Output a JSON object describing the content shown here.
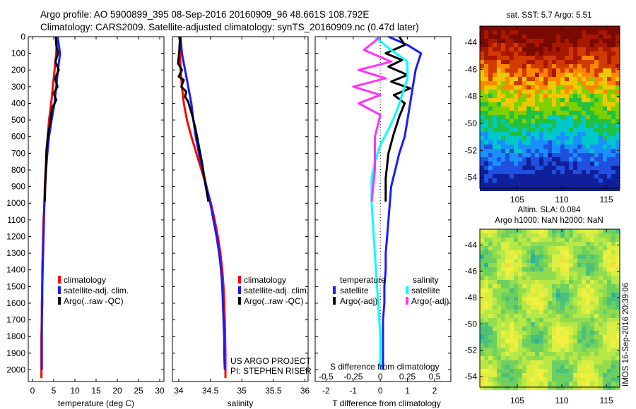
{
  "header": {
    "line1": "Argo profile: AO 5900899_395 08-Sep-2016 20160909_96 48.661S 108.792E",
    "line2": "Climatology: CARS2009. Satellite-adjusted climatology: synTS_20160909.nc (0.47d later)"
  },
  "depth_ticks": [
    "0",
    "100",
    "200",
    "300",
    "400",
    "500",
    "600",
    "700",
    "800",
    "900",
    "1000",
    "1100",
    "1200",
    "1300",
    "1400",
    "1500",
    "1600",
    "1700",
    "1800",
    "1900",
    "2000"
  ],
  "temperature_panel": {
    "xlabel": "temperature (deg C)",
    "xticks": [
      "0",
      "5",
      "10",
      "15",
      "20",
      "25",
      "30"
    ],
    "legend": [
      "climatology",
      "satellite-adj. clim.",
      "Argo(..raw -QC)"
    ]
  },
  "salinity_panel": {
    "xlabel": "salinity",
    "xticks": [
      "34",
      "34.5",
      "35",
      "35.5",
      "36"
    ],
    "legend": [
      "climatology",
      "satellite-adj. clim.",
      "Argo(..raw -QC)"
    ],
    "credit1": "US ARGO PROJECT",
    "credit2": "PI: STEPHEN RISER"
  },
  "difference_panel": {
    "xlabel": "T difference from climatology",
    "xlabel_s": "S difference from climatology",
    "xticks_t": [
      "-2",
      "-1",
      "0",
      "1",
      "2"
    ],
    "xticks_s": [
      "-0.5",
      "-0.25",
      "0",
      "0.25",
      "0.5"
    ],
    "legend_t_title": "temperature",
    "legend_s_title": "salinity",
    "legend_t": [
      "satellite",
      "Argo(-adj)"
    ],
    "legend_s": [
      "satellite",
      "Argo(-adj)"
    ]
  },
  "sst_map": {
    "title": "sat. SST: 5.7 Argo: 5.51",
    "yticks": [
      "-44",
      "-46",
      "-48",
      "-50",
      "-52",
      "-54"
    ],
    "xticks": [
      "105",
      "110",
      "115"
    ]
  },
  "sla_map": {
    "title1": "Altim. SLA: 0.084",
    "title2": "Argo h1000: NaN h2000: NaN",
    "yticks": [
      "-44",
      "-46",
      "-48",
      "-50",
      "-52",
      "-54"
    ],
    "xticks": [
      "105",
      "110",
      "115"
    ]
  },
  "stamp": "IMOS 16-Sep-2016 20:39:06",
  "colors": {
    "climatology": "#ff0000",
    "satellite": "#1a1aff",
    "argo": "#000000",
    "salinity_satellite": "#00ffff",
    "salinity_argo": "#ff33ff"
  },
  "chart_data": [
    {
      "type": "line",
      "name": "temperature profile",
      "xlabel": "temperature (deg C)",
      "ylabel": "depth",
      "xlim": [
        -1,
        31
      ],
      "ylim": [
        2070,
        0
      ],
      "series": [
        {
          "name": "climatology",
          "x": [
            5.8,
            5.6,
            5.2,
            4.8,
            4.4,
            3.9,
            3.6,
            3.3,
            3.1,
            2.9,
            2.8,
            2.6,
            2.5,
            2.4,
            2.3,
            2.3,
            2.2,
            2.2,
            2.1,
            2.1,
            2.1
          ],
          "y": [
            0,
            100,
            200,
            300,
            400,
            500,
            600,
            700,
            800,
            900,
            1000,
            1100,
            1200,
            1300,
            1400,
            1500,
            1600,
            1700,
            1800,
            1900,
            2050
          ]
        },
        {
          "name": "satellite-adj. clim.",
          "x": [
            5.9,
            6.5,
            6.0,
            5.6,
            5.2,
            4.5,
            3.9,
            3.5,
            3.2,
            3.0,
            2.8,
            2.7,
            2.6,
            2.5,
            2.4,
            2.3,
            2.3,
            2.2,
            2.2,
            2.2,
            2.2
          ],
          "y": [
            0,
            100,
            200,
            300,
            400,
            500,
            600,
            700,
            800,
            900,
            1000,
            1100,
            1200,
            1300,
            1400,
            1500,
            1600,
            1700,
            1800,
            1900,
            2000
          ]
        },
        {
          "name": "Argo(..raw -QC)",
          "x": [
            5.5,
            5.6,
            6.0,
            5.4,
            6.2,
            5.3,
            5.9,
            5.0,
            5.6,
            4.6,
            4.4,
            4.1,
            3.7,
            3.5,
            3.3,
            3.2,
            3.0,
            2.9
          ],
          "y": [
            0,
            50,
            100,
            150,
            200,
            250,
            300,
            340,
            380,
            430,
            480,
            530,
            580,
            630,
            680,
            760,
            880,
            990
          ]
        }
      ]
    },
    {
      "type": "line",
      "name": "salinity profile",
      "xlabel": "salinity",
      "ylabel": "depth",
      "xlim": [
        33.9,
        36.05
      ],
      "ylim": [
        2070,
        0
      ],
      "series": [
        {
          "name": "climatology",
          "x": [
            34.02,
            34.02,
            34.03,
            34.05,
            34.08,
            34.13,
            34.2,
            34.28,
            34.36,
            34.44,
            34.51,
            34.57,
            34.62,
            34.66,
            34.69,
            34.71,
            34.72,
            34.73,
            34.735,
            34.74,
            34.74
          ],
          "y": [
            0,
            100,
            200,
            300,
            400,
            500,
            600,
            700,
            800,
            900,
            1000,
            1100,
            1200,
            1300,
            1400,
            1500,
            1600,
            1700,
            1800,
            1900,
            2050
          ]
        },
        {
          "name": "satellite-adj. clim.",
          "x": [
            34.03,
            34.05,
            34.1,
            34.15,
            34.2,
            34.23,
            34.27,
            34.32,
            34.38,
            34.44,
            34.5,
            34.55,
            34.6,
            34.64,
            34.67,
            34.69,
            34.7,
            34.71,
            34.72,
            34.72,
            34.73
          ],
          "y": [
            0,
            100,
            200,
            300,
            400,
            500,
            600,
            700,
            800,
            900,
            1000,
            1100,
            1200,
            1300,
            1400,
            1500,
            1600,
            1700,
            1800,
            1900,
            2000
          ]
        },
        {
          "name": "Argo(..raw -QC)",
          "x": [
            34.02,
            34.01,
            33.99,
            34.05,
            34.0,
            34.08,
            34.04,
            34.12,
            34.1,
            34.15,
            34.18,
            34.22,
            34.27,
            34.32,
            34.37,
            34.42,
            34.47
          ],
          "y": [
            0,
            80,
            160,
            200,
            240,
            260,
            300,
            330,
            360,
            390,
            430,
            480,
            560,
            660,
            760,
            880,
            990
          ]
        }
      ]
    },
    {
      "type": "line",
      "name": "difference profile",
      "xlabel": "T difference from climatology",
      "x2label": "S difference from climatology",
      "ylabel": "depth",
      "xlim": [
        -2.4,
        2.6
      ],
      "ylim": [
        2070,
        0
      ],
      "series": [
        {
          "name": "temperature satellite",
          "x": [
            0.3,
            1.0,
            1.5,
            1.3,
            1.2,
            1.1,
            1.0,
            0.9,
            0.7,
            0.55,
            0.4,
            0.35,
            0.3,
            0.25,
            0.2,
            0.2,
            0.15,
            0.15,
            0.1,
            0.1,
            0.1
          ],
          "y": [
            0,
            50,
            100,
            200,
            300,
            400,
            500,
            600,
            700,
            800,
            900,
            1000,
            1100,
            1200,
            1300,
            1400,
            1500,
            1600,
            1700,
            1800,
            2000
          ]
        },
        {
          "name": "temperature Argo(-adj)",
          "x": [
            0.7,
            0.9,
            0.2,
            0.8,
            0.3,
            1.0,
            0.4,
            1.1,
            0.5,
            0.9,
            0.7,
            0.5,
            0.3,
            0.2,
            0.2
          ],
          "y": [
            0,
            50,
            100,
            140,
            180,
            230,
            270,
            310,
            350,
            400,
            480,
            580,
            700,
            850,
            990
          ]
        },
        {
          "name": "salinity satellite",
          "x": [
            -0.05,
            0.1,
            0.25,
            0.25,
            0.2,
            0.15,
            0.08,
            0.0,
            -0.05,
            -0.08,
            -0.08,
            -0.06,
            -0.04,
            -0.02,
            0.0,
            0.0
          ],
          "y": [
            0,
            80,
            150,
            250,
            350,
            450,
            550,
            650,
            750,
            850,
            1000,
            1200,
            1400,
            1600,
            1800,
            2000
          ]
        },
        {
          "name": "salinity Argo(-adj)",
          "x": [
            0.0,
            -0.15,
            0.1,
            -0.2,
            0.05,
            -0.25,
            0.0,
            -0.2,
            0.0,
            -0.05,
            -0.05,
            -0.08
          ],
          "y": [
            0,
            80,
            150,
            200,
            250,
            300,
            350,
            400,
            470,
            600,
            800,
            990
          ]
        }
      ]
    },
    {
      "type": "heatmap",
      "name": "satellite SST map",
      "title": "sat. SST: 5.7 Argo: 5.51",
      "xticks": [
        105,
        110,
        115
      ],
      "yticks": [
        -44,
        -46,
        -48,
        -50,
        -52,
        -54
      ],
      "xlim": [
        100.8,
        116.5
      ],
      "ylim": [
        -54.8,
        -42.8
      ]
    },
    {
      "type": "heatmap",
      "name": "altimetry SLA map",
      "title": "Altim. SLA: 0.084",
      "subtitle": "Argo h1000: NaN h2000: NaN",
      "xticks": [
        105,
        110,
        115
      ],
      "yticks": [
        -44,
        -46,
        -48,
        -50,
        -52,
        -54
      ],
      "xlim": [
        100.8,
        116.5
      ],
      "ylim": [
        -54.8,
        -42.8
      ]
    }
  ]
}
